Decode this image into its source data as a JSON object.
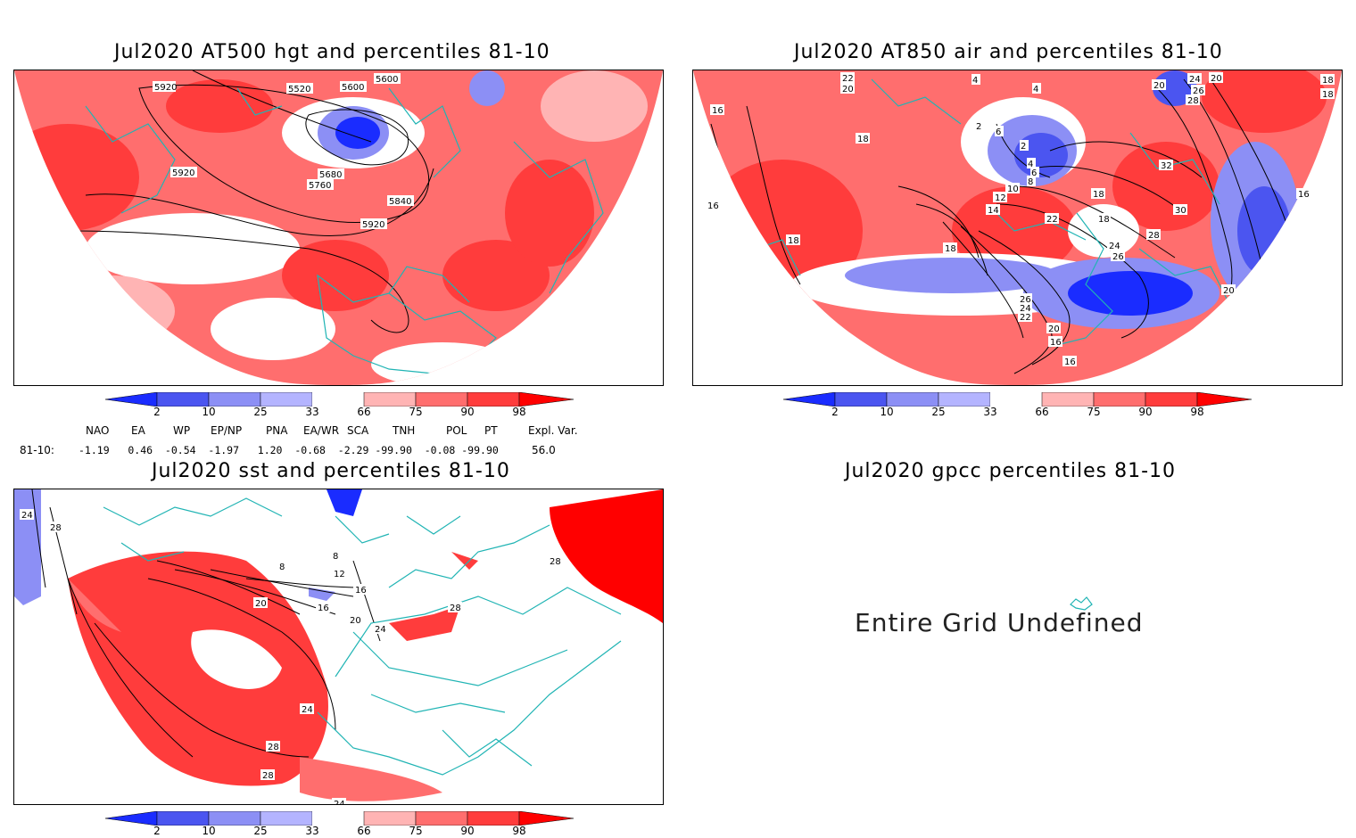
{
  "panels": {
    "hgt": {
      "title": "Jul2020 AT500 hgt and percentiles 81-10",
      "contour_labels": [
        "5920",
        "5520",
        "5600",
        "5600",
        "5680",
        "5760",
        "5840",
        "5920",
        "5920"
      ]
    },
    "air": {
      "title": "Jul2020 AT850 air and percentiles 81-10",
      "contour_labels": [
        "22",
        "20",
        "4",
        "4",
        "20",
        "24",
        "26",
        "28",
        "18",
        "18",
        "16",
        "18",
        "2",
        "6",
        "2",
        "4",
        "6",
        "8",
        "10",
        "12",
        "14",
        "18",
        "16",
        "18",
        "22",
        "32",
        "30",
        "28",
        "24",
        "26",
        "18",
        "18",
        "20",
        "22",
        "24",
        "26",
        "20",
        "16",
        "16",
        "16",
        "20"
      ]
    },
    "sst": {
      "title": "Jul2020 sst and percentiles 81-10",
      "contour_labels": [
        "24",
        "28",
        "8",
        "8",
        "12",
        "16",
        "16",
        "20",
        "20",
        "24",
        "28",
        "24",
        "28",
        "28",
        "28",
        "24"
      ]
    },
    "gpcc": {
      "title": "Jul2020 gpcc percentiles 81-10",
      "message": "Entire Grid Undefined"
    }
  },
  "colorbar": {
    "labels": [
      "2",
      "10",
      "25",
      "33",
      "66",
      "75",
      "90",
      "98"
    ],
    "colors": [
      "#1a2cff",
      "#4b55f0",
      "#8c8ff5",
      "#b4b4ff",
      "#ffffff",
      "#ffb4b4",
      "#ff6e6e",
      "#ff3c3c",
      "#ff0000"
    ]
  },
  "indices": {
    "header": [
      "NAO",
      "EA",
      "WP",
      "EP/NP",
      "PNA",
      "EA/WR",
      "SCA",
      "TNH",
      "POL",
      "PT",
      "Expl. Var."
    ],
    "row_label": "81-10:",
    "values": "-1.19   0.46  -0.54  -1.97   1.20  -0.68  -2.29 -99.90  -0.08 -99.90",
    "expl": "56.0"
  }
}
